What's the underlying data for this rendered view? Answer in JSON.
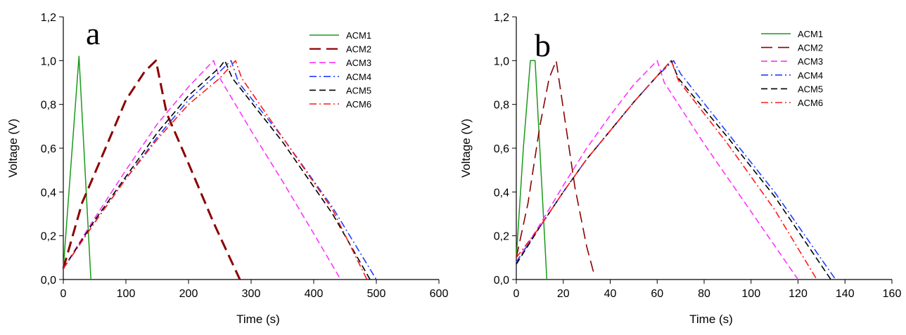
{
  "chart_data": [
    {
      "type": "line",
      "panel_label": "a",
      "xlabel": "Time (s)",
      "ylabel": "Voltage (V)",
      "xlim": [
        0,
        600
      ],
      "ylim": [
        0,
        1.2
      ],
      "xticks": [
        "0",
        "100",
        "200",
        "300",
        "400",
        "500",
        "600"
      ],
      "yticks": [
        "0,0",
        "0,2",
        "0,4",
        "0,6",
        "0,8",
        "1,0",
        "1,2"
      ],
      "grid": false,
      "legend_position": "top-right",
      "series": [
        {
          "name": "ACM1",
          "color": "#1a9a1a",
          "dash": "solid",
          "width": 1.5,
          "x": [
            0,
            25,
            44
          ],
          "y": [
            0.05,
            1.02,
            0.0
          ]
        },
        {
          "name": "ACM2",
          "color": "#8b0000",
          "dash": "long",
          "width": 3,
          "x": [
            0,
            10,
            30,
            60,
            100,
            130,
            148,
            165,
            200,
            240,
            282
          ],
          "y": [
            0.05,
            0.15,
            0.35,
            0.55,
            0.82,
            0.95,
            1.0,
            0.76,
            0.53,
            0.26,
            0.0
          ]
        },
        {
          "name": "ACM3",
          "color": "#ff33ff",
          "dash": "medium",
          "width": 1.6,
          "x": [
            0,
            50,
            100,
            150,
            200,
            240,
            250,
            300,
            350,
            400,
            443
          ],
          "y": [
            0.05,
            0.28,
            0.5,
            0.71,
            0.88,
            1.0,
            0.92,
            0.68,
            0.45,
            0.21,
            0.0
          ]
        },
        {
          "name": "ACM4",
          "color": "#1f3fff",
          "dash": "dashdot",
          "width": 1.6,
          "x": [
            0,
            50,
            100,
            150,
            200,
            250,
            268,
            280,
            350,
            430,
            500
          ],
          "y": [
            0.05,
            0.26,
            0.46,
            0.65,
            0.82,
            0.95,
            1.0,
            0.9,
            0.65,
            0.33,
            0.0
          ]
        },
        {
          "name": "ACM5",
          "color": "#000000",
          "dash": "medium",
          "width": 1.6,
          "x": [
            0,
            50,
            100,
            150,
            200,
            250,
            258,
            270,
            350,
            430,
            490
          ],
          "y": [
            0.05,
            0.27,
            0.47,
            0.67,
            0.84,
            0.97,
            1.0,
            0.92,
            0.63,
            0.3,
            0.0
          ]
        },
        {
          "name": "ACM6",
          "color": "#ff1a1a",
          "dash": "dashdot",
          "width": 1.6,
          "x": [
            0,
            50,
            100,
            150,
            200,
            250,
            275,
            285,
            350,
            430,
            485
          ],
          "y": [
            0.05,
            0.26,
            0.46,
            0.64,
            0.8,
            0.92,
            1.0,
            0.92,
            0.65,
            0.32,
            0.0
          ]
        }
      ]
    },
    {
      "type": "line",
      "panel_label": "b",
      "xlabel": "Time (s)",
      "ylabel": "Voltage (V)",
      "xlim": [
        0,
        160
      ],
      "ylim": [
        0,
        1.2
      ],
      "xticks": [
        "0",
        "20",
        "40",
        "60",
        "80",
        "100",
        "120",
        "140",
        "160"
      ],
      "yticks": [
        "0,0",
        "0,2",
        "0,4",
        "0,6",
        "0,8",
        "1,0",
        "1,2"
      ],
      "grid": false,
      "legend_position": "top-right",
      "series": [
        {
          "name": "ACM1",
          "color": "#1a9a1a",
          "dash": "solid",
          "width": 1.5,
          "x": [
            0,
            3,
            6,
            8,
            10,
            13
          ],
          "y": [
            0.1,
            0.6,
            1.0,
            1.0,
            0.6,
            0.0
          ]
        },
        {
          "name": "ACM2",
          "color": "#8b0000",
          "dash": "long",
          "width": 1.6,
          "x": [
            0,
            5,
            10,
            14,
            17,
            20,
            25,
            30,
            33
          ],
          "y": [
            0.1,
            0.35,
            0.7,
            0.92,
            1.0,
            0.78,
            0.42,
            0.15,
            0.03
          ]
        },
        {
          "name": "ACM3",
          "color": "#ff33ff",
          "dash": "medium",
          "width": 1.6,
          "x": [
            0,
            10,
            20,
            30,
            40,
            50,
            60,
            63,
            80,
            100,
            120
          ],
          "y": [
            0.08,
            0.25,
            0.43,
            0.6,
            0.75,
            0.89,
            1.0,
            0.9,
            0.62,
            0.31,
            0.0
          ]
        },
        {
          "name": "ACM4",
          "color": "#1f3fff",
          "dash": "dashdot",
          "width": 1.6,
          "x": [
            0,
            10,
            20,
            30,
            40,
            50,
            60,
            67,
            70,
            90,
            110,
            136
          ],
          "y": [
            0.08,
            0.24,
            0.4,
            0.55,
            0.68,
            0.81,
            0.93,
            1.0,
            0.94,
            0.67,
            0.4,
            0.0
          ]
        },
        {
          "name": "ACM5",
          "color": "#000000",
          "dash": "medium",
          "width": 1.6,
          "x": [
            0,
            10,
            20,
            30,
            40,
            50,
            60,
            66,
            69,
            90,
            110,
            134
          ],
          "y": [
            0.07,
            0.24,
            0.4,
            0.55,
            0.68,
            0.81,
            0.93,
            1.0,
            0.92,
            0.65,
            0.38,
            0.0
          ]
        },
        {
          "name": "ACM6",
          "color": "#ff1a1a",
          "dash": "dashdot",
          "width": 1.6,
          "x": [
            0,
            10,
            20,
            30,
            40,
            50,
            60,
            66,
            69,
            90,
            110,
            128
          ],
          "y": [
            0.1,
            0.24,
            0.4,
            0.55,
            0.68,
            0.81,
            0.93,
            1.0,
            0.91,
            0.62,
            0.32,
            0.0
          ]
        }
      ]
    }
  ]
}
